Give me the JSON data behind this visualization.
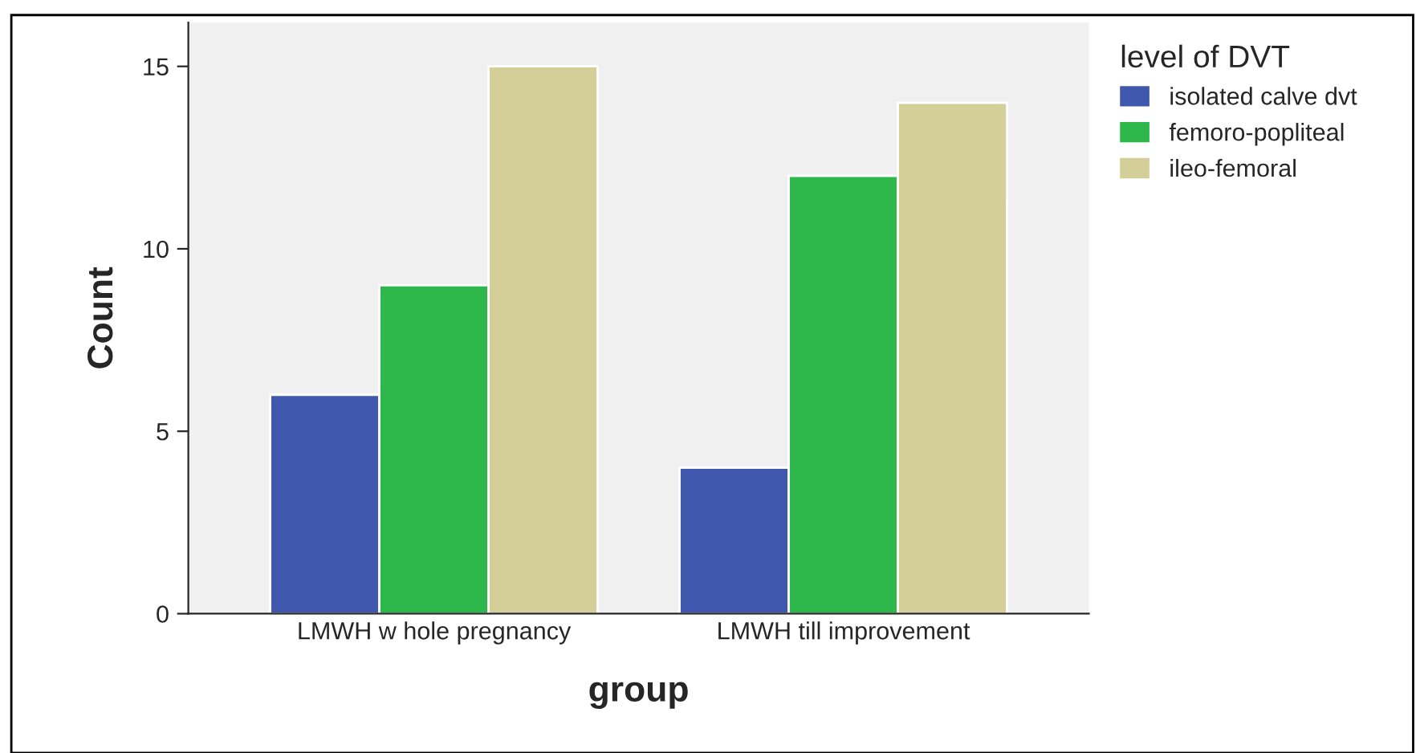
{
  "chart_data": {
    "type": "bar",
    "xlabel": "group",
    "ylabel": "Count",
    "legend_title": "level of DVT",
    "categories": [
      "LMWH w hole pregnancy",
      "LMWH till improvement"
    ],
    "series": [
      {
        "name": "isolated calve dvt",
        "color": "#3f58ad",
        "values": [
          6,
          4
        ]
      },
      {
        "name": "femoro-popliteal",
        "color": "#2eb84b",
        "values": [
          9,
          12
        ]
      },
      {
        "name": "ileo-femoral",
        "color": "#d4cf98",
        "values": [
          15,
          14
        ]
      }
    ],
    "ylim": [
      0,
      16.2
    ],
    "yticks": [
      0,
      5,
      10,
      15
    ],
    "grid": false,
    "legend": "right"
  }
}
